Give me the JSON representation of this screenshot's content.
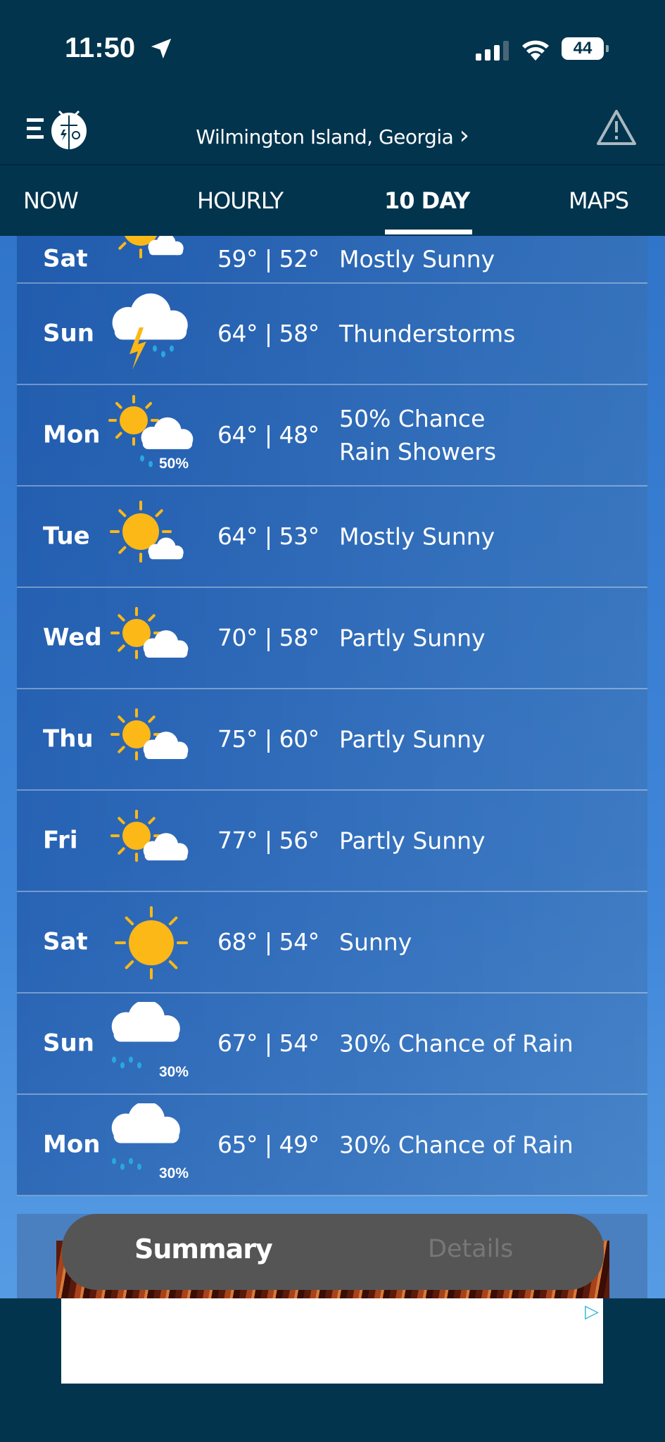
{
  "status_bar": {
    "time": "11:50",
    "battery": "44"
  },
  "header": {
    "location": "Wilmington Island, Georgia",
    "chevron": "›",
    "menu_icon": "menu-logo-icon",
    "alert_icon": "warning-triangle-icon"
  },
  "tabs": [
    {
      "label": "NOW"
    },
    {
      "label": "HOURLY"
    },
    {
      "label": "10 DAY",
      "active": true
    },
    {
      "label": "MAPS"
    }
  ],
  "forecast": [
    {
      "day": "Sat",
      "temps": "59° | 52°",
      "condition": "Mostly Sunny",
      "icon": "mostly-sunny"
    },
    {
      "day": "Sun",
      "temps": "64° | 58°",
      "condition": "Thunderstorms",
      "icon": "thunderstorm"
    },
    {
      "day": "Mon",
      "temps": "64° | 48°",
      "condition": "50% Chance\nRain Showers",
      "icon": "sun-cloud-rain",
      "precip": "50%"
    },
    {
      "day": "Tue",
      "temps": "64° | 53°",
      "condition": "Mostly Sunny",
      "icon": "mostly-sunny"
    },
    {
      "day": "Wed",
      "temps": "70° | 58°",
      "condition": "Partly Sunny",
      "icon": "partly-sunny"
    },
    {
      "day": "Thu",
      "temps": "75° | 60°",
      "condition": "Partly Sunny",
      "icon": "partly-sunny"
    },
    {
      "day": "Fri",
      "temps": "77° | 56°",
      "condition": "Partly Sunny",
      "icon": "partly-sunny"
    },
    {
      "day": "Sat",
      "temps": "68° | 54°",
      "condition": "Sunny",
      "icon": "sunny"
    },
    {
      "day": "Sun",
      "temps": "67° | 54°",
      "condition": "30% Chance of Rain",
      "icon": "rain",
      "precip": "30%"
    },
    {
      "day": "Mon",
      "temps": "65° | 49°",
      "condition": "30% Chance of Rain",
      "icon": "rain",
      "precip": "30%"
    }
  ],
  "bottom_toggle": {
    "summary": "Summary",
    "details": "Details"
  },
  "colors": {
    "header_bg": "#02344d",
    "sun": "#fbb817",
    "rain": "#29a8e0",
    "pill": "#555555"
  }
}
